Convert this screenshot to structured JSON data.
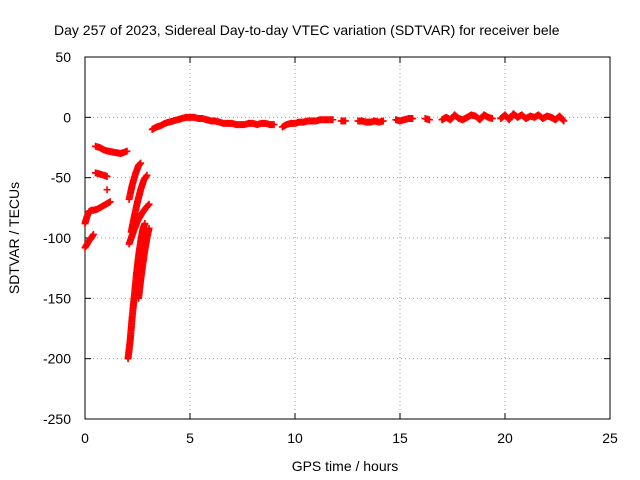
{
  "chart_data": {
    "type": "scatter",
    "title": "Day 257 of 2023, Sidereal Day-to-day VTEC variation (SDTVAR) for receiver bele",
    "xlabel": "GPS time / hours",
    "ylabel": "SDTVAR / TECUs",
    "xlim": [
      0,
      25
    ],
    "ylim": [
      -250,
      50
    ],
    "xticks": [
      0,
      5,
      10,
      15,
      20,
      25
    ],
    "yticks": [
      50,
      0,
      -50,
      -100,
      -150,
      -200,
      -250
    ],
    "grid": true,
    "marker": "+",
    "color": "#ff0000",
    "series": [
      {
        "name": "SDTVAR",
        "segments": [
          [
            [
              0.0,
              -108
            ],
            [
              0.1,
              -105
            ],
            [
              0.2,
              -102
            ],
            [
              0.3,
              -100
            ],
            [
              0.4,
              -97
            ]
          ],
          [
            [
              0.0,
              -88
            ],
            [
              0.1,
              -82
            ],
            [
              0.2,
              -78
            ],
            [
              0.3,
              -77
            ],
            [
              0.4,
              -77
            ],
            [
              0.6,
              -76
            ],
            [
              0.8,
              -74
            ],
            [
              1.0,
              -72
            ],
            [
              1.2,
              -70
            ]
          ],
          [
            [
              0.5,
              -46
            ],
            [
              0.7,
              -47
            ],
            [
              0.9,
              -48
            ],
            [
              1.05,
              -49
            ]
          ],
          [
            [
              1.05,
              -60
            ]
          ],
          [
            [
              0.5,
              -24
            ],
            [
              0.7,
              -25
            ],
            [
              0.9,
              -27
            ],
            [
              1.1,
              -28
            ],
            [
              1.4,
              -29
            ],
            [
              1.7,
              -30
            ],
            [
              2.0,
              -28
            ]
          ],
          [
            [
              2.05,
              -200
            ],
            [
              2.15,
              -185
            ],
            [
              2.25,
              -165
            ],
            [
              2.35,
              -148
            ],
            [
              2.45,
              -130
            ],
            [
              2.55,
              -115
            ],
            [
              2.65,
              -103
            ],
            [
              2.75,
              -93
            ],
            [
              2.85,
              -88
            ]
          ],
          [
            [
              2.2,
              -95
            ],
            [
              2.35,
              -82
            ],
            [
              2.5,
              -70
            ],
            [
              2.65,
              -60
            ],
            [
              2.8,
              -52
            ],
            [
              2.95,
              -48
            ]
          ],
          [
            [
              2.1,
              -68
            ],
            [
              2.25,
              -56
            ],
            [
              2.4,
              -47
            ],
            [
              2.55,
              -40
            ],
            [
              2.65,
              -38
            ]
          ],
          [
            [
              2.1,
              -105
            ],
            [
              2.3,
              -95
            ],
            [
              2.5,
              -86
            ],
            [
              2.7,
              -80
            ],
            [
              2.9,
              -75
            ],
            [
              3.05,
              -72
            ]
          ],
          [
            [
              2.55,
              -150
            ],
            [
              2.65,
              -135
            ],
            [
              2.75,
              -122
            ],
            [
              2.85,
              -110
            ],
            [
              2.95,
              -100
            ],
            [
              3.05,
              -92
            ]
          ],
          [
            [
              3.2,
              -10
            ],
            [
              3.4,
              -8
            ],
            [
              3.6,
              -7
            ],
            [
              3.8,
              -5
            ],
            [
              4.0,
              -4
            ],
            [
              4.2,
              -3
            ],
            [
              4.4,
              -2
            ],
            [
              4.6,
              -1
            ],
            [
              4.8,
              0
            ],
            [
              5.0,
              0
            ],
            [
              5.2,
              0
            ],
            [
              5.4,
              -1
            ],
            [
              5.6,
              -1
            ],
            [
              5.8,
              -2
            ],
            [
              6.0,
              -3
            ],
            [
              6.2,
              -3
            ],
            [
              6.4,
              -4
            ],
            [
              6.6,
              -5
            ],
            [
              6.8,
              -5
            ],
            [
              7.0,
              -5
            ],
            [
              7.2,
              -6
            ],
            [
              7.4,
              -6
            ],
            [
              7.6,
              -6
            ],
            [
              7.8,
              -5
            ],
            [
              8.0,
              -5
            ],
            [
              8.2,
              -6
            ],
            [
              8.4,
              -5
            ],
            [
              8.6,
              -5
            ],
            [
              8.8,
              -6
            ],
            [
              9.0,
              -6
            ]
          ],
          [
            [
              9.4,
              -8
            ],
            [
              9.6,
              -6
            ],
            [
              9.8,
              -5
            ],
            [
              10.0,
              -5
            ],
            [
              10.2,
              -4
            ],
            [
              10.4,
              -4
            ],
            [
              10.6,
              -3
            ],
            [
              10.8,
              -3
            ],
            [
              11.0,
              -3
            ],
            [
              11.2,
              -2
            ],
            [
              11.4,
              -2
            ],
            [
              11.6,
              -2
            ],
            [
              11.8,
              -2
            ]
          ],
          [
            [
              12.2,
              -3
            ],
            [
              12.4,
              -3
            ]
          ],
          [
            [
              13.0,
              -3
            ],
            [
              13.2,
              -3
            ],
            [
              13.4,
              -4
            ],
            [
              13.6,
              -4
            ],
            [
              13.8,
              -3
            ],
            [
              14.0,
              -4
            ],
            [
              14.2,
              -3
            ]
          ],
          [
            [
              14.8,
              -2
            ],
            [
              15.0,
              -3
            ],
            [
              15.2,
              -2
            ],
            [
              15.4,
              -1
            ],
            [
              15.6,
              -1
            ]
          ],
          [
            [
              16.2,
              -1
            ],
            [
              16.4,
              -2
            ]
          ],
          [
            [
              17.0,
              -2
            ],
            [
              17.2,
              0
            ],
            [
              17.4,
              -2
            ],
            [
              17.6,
              2
            ],
            [
              17.8,
              -1
            ],
            [
              18.0,
              -2
            ],
            [
              18.2,
              0
            ],
            [
              18.4,
              2
            ],
            [
              18.6,
              1
            ],
            [
              18.8,
              -2
            ],
            [
              19.0,
              2
            ],
            [
              19.2,
              0
            ],
            [
              19.4,
              -1
            ]
          ],
          [
            [
              19.8,
              -1
            ],
            [
              20.0,
              2
            ],
            [
              20.2,
              -2
            ],
            [
              20.4,
              3
            ],
            [
              20.6,
              0
            ],
            [
              20.8,
              2
            ],
            [
              21.0,
              -1
            ],
            [
              21.2,
              1
            ],
            [
              21.4,
              0
            ],
            [
              21.6,
              2
            ],
            [
              21.8,
              -1
            ],
            [
              22.0,
              1
            ],
            [
              22.2,
              0
            ],
            [
              22.4,
              -2
            ],
            [
              22.6,
              1
            ],
            [
              22.8,
              -3
            ]
          ]
        ]
      }
    ]
  }
}
